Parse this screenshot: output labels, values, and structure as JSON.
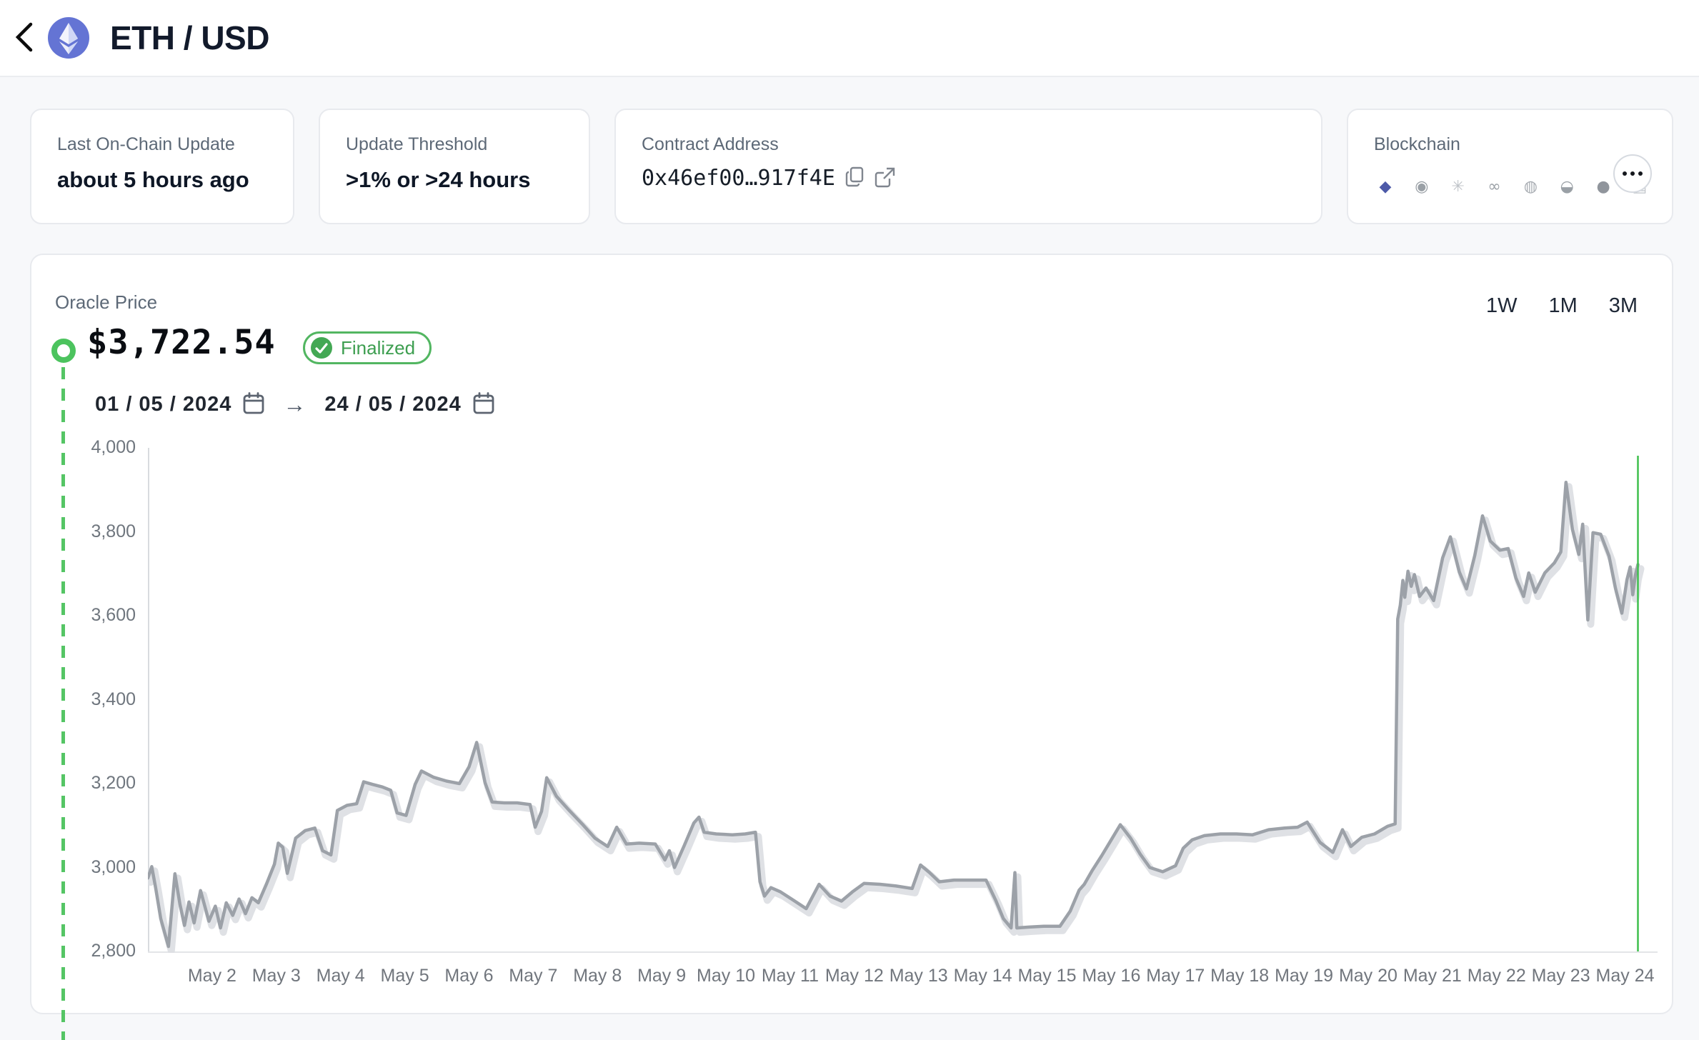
{
  "header": {
    "title": "ETH / USD"
  },
  "cards": {
    "last_update": {
      "label": "Last On-Chain Update",
      "value": "about 5 hours ago"
    },
    "threshold": {
      "label": "Update Threshold",
      "value": ">1% or >24 hours"
    },
    "contract": {
      "label": "Contract Address",
      "value": "0x46ef00…917f4E"
    },
    "blockchain": {
      "label": "Blockchain",
      "chains": [
        {
          "name": "ethereum",
          "glyph": "◆",
          "color": "#4d5aa8"
        },
        {
          "name": "chain-2",
          "glyph": "◉",
          "color": "#9aa0a6"
        },
        {
          "name": "chain-3",
          "glyph": "✳",
          "color": "#c0c4c9"
        },
        {
          "name": "chain-4",
          "glyph": "∞",
          "color": "#9aa0a6"
        },
        {
          "name": "chain-5",
          "glyph": "◍",
          "color": "#a6abb1"
        },
        {
          "name": "chain-6",
          "glyph": "◒",
          "color": "#9aa0a6"
        },
        {
          "name": "chain-7",
          "glyph": "●",
          "color": "#90959c"
        },
        {
          "name": "chain-8",
          "glyph": "▤",
          "color": "#c0c4c9"
        }
      ]
    }
  },
  "price_panel": {
    "label": "Oracle Price",
    "price": "$3,722.54",
    "badge": "Finalized",
    "date_from": "01 / 05 / 2024",
    "date_to": "24 / 05 / 2024",
    "arrow": "→",
    "ranges": [
      "1W",
      "1M",
      "3M"
    ]
  },
  "colors": {
    "accent_green": "#4cc35e",
    "current_line_green": "#3fbf4d",
    "line_gray": "#9ca1a8",
    "line_shadow": "#dbdee2"
  },
  "chart_data": {
    "type": "line",
    "title": "ETH / USD Oracle Price, 01/05/2024 - 24/05/2024",
    "xlabel": "",
    "ylabel": "",
    "grid": false,
    "legend": "none",
    "xlim": [
      1,
      24.25
    ],
    "ylim": [
      2800,
      4000
    ],
    "y_ticks": [
      {
        "value": 4000,
        "label": "4,000"
      },
      {
        "value": 3800,
        "label": "3,800"
      },
      {
        "value": 3600,
        "label": "3,600"
      },
      {
        "value": 3400,
        "label": "3,400"
      },
      {
        "value": 3200,
        "label": "3,200"
      },
      {
        "value": 3000,
        "label": "3,000"
      },
      {
        "value": 2800,
        "label": "2,800"
      }
    ],
    "x_ticks": [
      {
        "value": 2,
        "label": "May 2"
      },
      {
        "value": 3,
        "label": "May 3"
      },
      {
        "value": 4,
        "label": "May 4"
      },
      {
        "value": 5,
        "label": "May 5"
      },
      {
        "value": 6,
        "label": "May 6"
      },
      {
        "value": 7,
        "label": "May 7"
      },
      {
        "value": 8,
        "label": "May 8"
      },
      {
        "value": 9,
        "label": "May 9"
      },
      {
        "value": 10,
        "label": "May 10"
      },
      {
        "value": 11,
        "label": "May 11"
      },
      {
        "value": 12,
        "label": "May 12"
      },
      {
        "value": 13,
        "label": "May 13"
      },
      {
        "value": 14,
        "label": "May 14"
      },
      {
        "value": 15,
        "label": "May 15"
      },
      {
        "value": 16,
        "label": "May 16"
      },
      {
        "value": 17,
        "label": "May 17"
      },
      {
        "value": 18,
        "label": "May 18"
      },
      {
        "value": 19,
        "label": "May 19"
      },
      {
        "value": 20,
        "label": "May 20"
      },
      {
        "value": 21,
        "label": "May 21"
      },
      {
        "value": 22,
        "label": "May 22"
      },
      {
        "value": 23,
        "label": "May 23"
      },
      {
        "value": 24,
        "label": "May 24"
      }
    ],
    "current_marker": {
      "value": 24.2,
      "price": 3722.54
    },
    "series": [
      {
        "name": "Oracle Price (USD)",
        "points": [
          [
            1.0,
            2975
          ],
          [
            1.06,
            3002
          ],
          [
            1.12,
            2952
          ],
          [
            1.2,
            2878
          ],
          [
            1.32,
            2812
          ],
          [
            1.42,
            2985
          ],
          [
            1.5,
            2912
          ],
          [
            1.57,
            2862
          ],
          [
            1.64,
            2918
          ],
          [
            1.72,
            2868
          ],
          [
            1.82,
            2945
          ],
          [
            1.95,
            2872
          ],
          [
            2.05,
            2908
          ],
          [
            2.13,
            2856
          ],
          [
            2.22,
            2916
          ],
          [
            2.32,
            2886
          ],
          [
            2.42,
            2925
          ],
          [
            2.52,
            2890
          ],
          [
            2.62,
            2928
          ],
          [
            2.72,
            2916
          ],
          [
            2.85,
            2962
          ],
          [
            2.97,
            3008
          ],
          [
            3.03,
            3058
          ],
          [
            3.1,
            3048
          ],
          [
            3.17,
            2986
          ],
          [
            3.3,
            3070
          ],
          [
            3.45,
            3088
          ],
          [
            3.6,
            3094
          ],
          [
            3.72,
            3040
          ],
          [
            3.85,
            3030
          ],
          [
            3.95,
            3136
          ],
          [
            4.1,
            3148
          ],
          [
            4.25,
            3152
          ],
          [
            4.36,
            3204
          ],
          [
            4.5,
            3198
          ],
          [
            4.65,
            3192
          ],
          [
            4.78,
            3184
          ],
          [
            4.88,
            3130
          ],
          [
            5.02,
            3124
          ],
          [
            5.16,
            3198
          ],
          [
            5.26,
            3230
          ],
          [
            5.45,
            3215
          ],
          [
            5.65,
            3206
          ],
          [
            5.85,
            3200
          ],
          [
            6.0,
            3240
          ],
          [
            6.12,
            3298
          ],
          [
            6.25,
            3202
          ],
          [
            6.36,
            3156
          ],
          [
            6.55,
            3154
          ],
          [
            6.75,
            3154
          ],
          [
            6.95,
            3150
          ],
          [
            7.03,
            3096
          ],
          [
            7.13,
            3134
          ],
          [
            7.21,
            3214
          ],
          [
            7.36,
            3170
          ],
          [
            7.56,
            3136
          ],
          [
            7.76,
            3104
          ],
          [
            7.96,
            3070
          ],
          [
            8.16,
            3050
          ],
          [
            8.3,
            3096
          ],
          [
            8.45,
            3056
          ],
          [
            8.65,
            3058
          ],
          [
            8.9,
            3056
          ],
          [
            9.05,
            3018
          ],
          [
            9.12,
            3040
          ],
          [
            9.2,
            3000
          ],
          [
            9.35,
            3052
          ],
          [
            9.5,
            3106
          ],
          [
            9.58,
            3120
          ],
          [
            9.66,
            3084
          ],
          [
            9.85,
            3080
          ],
          [
            10.1,
            3078
          ],
          [
            10.3,
            3080
          ],
          [
            10.46,
            3084
          ],
          [
            10.53,
            2966
          ],
          [
            10.6,
            2932
          ],
          [
            10.7,
            2952
          ],
          [
            10.85,
            2942
          ],
          [
            11.05,
            2922
          ],
          [
            11.25,
            2902
          ],
          [
            11.45,
            2960
          ],
          [
            11.62,
            2932
          ],
          [
            11.8,
            2920
          ],
          [
            11.97,
            2942
          ],
          [
            12.15,
            2962
          ],
          [
            12.4,
            2960
          ],
          [
            12.65,
            2956
          ],
          [
            12.9,
            2950
          ],
          [
            13.03,
            3006
          ],
          [
            13.17,
            2988
          ],
          [
            13.32,
            2966
          ],
          [
            13.55,
            2970
          ],
          [
            13.8,
            2970
          ],
          [
            14.05,
            2970
          ],
          [
            14.2,
            2922
          ],
          [
            14.32,
            2878
          ],
          [
            14.44,
            2856
          ],
          [
            14.5,
            2988
          ],
          [
            14.53,
            2856
          ],
          [
            14.72,
            2858
          ],
          [
            14.95,
            2860
          ],
          [
            15.2,
            2860
          ],
          [
            15.36,
            2896
          ],
          [
            15.5,
            2946
          ],
          [
            15.58,
            2960
          ],
          [
            15.7,
            2992
          ],
          [
            15.85,
            3028
          ],
          [
            16.0,
            3066
          ],
          [
            16.14,
            3102
          ],
          [
            16.3,
            3070
          ],
          [
            16.45,
            3032
          ],
          [
            16.6,
            3000
          ],
          [
            16.8,
            2990
          ],
          [
            17.0,
            3004
          ],
          [
            17.12,
            3046
          ],
          [
            17.26,
            3066
          ],
          [
            17.45,
            3076
          ],
          [
            17.7,
            3080
          ],
          [
            17.95,
            3080
          ],
          [
            18.2,
            3078
          ],
          [
            18.45,
            3090
          ],
          [
            18.7,
            3094
          ],
          [
            18.9,
            3096
          ],
          [
            19.05,
            3108
          ],
          [
            19.25,
            3060
          ],
          [
            19.45,
            3036
          ],
          [
            19.6,
            3090
          ],
          [
            19.73,
            3050
          ],
          [
            19.9,
            3072
          ],
          [
            20.1,
            3080
          ],
          [
            20.3,
            3098
          ],
          [
            20.42,
            3104
          ],
          [
            20.46,
            3592
          ],
          [
            20.5,
            3625
          ],
          [
            20.54,
            3684
          ],
          [
            20.57,
            3644
          ],
          [
            20.62,
            3706
          ],
          [
            20.67,
            3670
          ],
          [
            20.72,
            3698
          ],
          [
            20.8,
            3646
          ],
          [
            20.9,
            3666
          ],
          [
            21.02,
            3636
          ],
          [
            21.16,
            3738
          ],
          [
            21.28,
            3788
          ],
          [
            21.42,
            3704
          ],
          [
            21.53,
            3664
          ],
          [
            21.66,
            3744
          ],
          [
            21.78,
            3838
          ],
          [
            21.9,
            3778
          ],
          [
            22.05,
            3756
          ],
          [
            22.18,
            3760
          ],
          [
            22.3,
            3690
          ],
          [
            22.42,
            3646
          ],
          [
            22.5,
            3702
          ],
          [
            22.6,
            3656
          ],
          [
            22.75,
            3702
          ],
          [
            22.9,
            3726
          ],
          [
            23.0,
            3752
          ],
          [
            23.08,
            3918
          ],
          [
            23.18,
            3806
          ],
          [
            23.28,
            3746
          ],
          [
            23.34,
            3818
          ],
          [
            23.42,
            3590
          ],
          [
            23.5,
            3798
          ],
          [
            23.62,
            3794
          ],
          [
            23.75,
            3742
          ],
          [
            23.85,
            3666
          ],
          [
            23.95,
            3606
          ],
          [
            24.03,
            3686
          ],
          [
            24.08,
            3716
          ],
          [
            24.12,
            3650
          ],
          [
            24.16,
            3696
          ],
          [
            24.2,
            3722
          ]
        ]
      }
    ]
  }
}
